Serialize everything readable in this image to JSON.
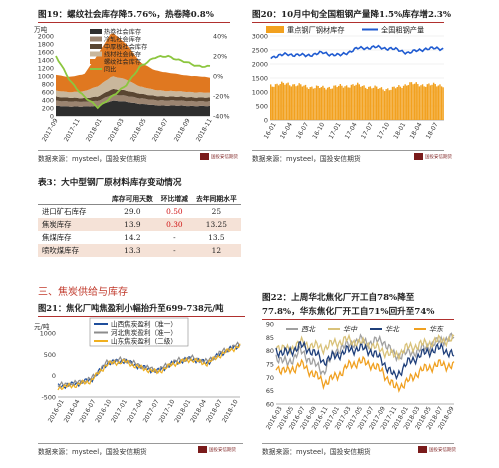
{
  "fig19": {
    "title": "图19：螺纹社会库存降5.76%，热卷降0.8%",
    "y_unit": "万吨",
    "source": "数据来源：mysteel，国投安信期货",
    "chart_data": {
      "type": "area",
      "title": "图19：螺纹社会库存降5.76%，热卷降0.8%",
      "ylabel": "万吨",
      "ylim": [
        0,
        2000
      ],
      "y2lim": [
        -40,
        40
      ],
      "y_ticks": [
        "2000",
        "1800",
        "1600",
        "1400",
        "1200",
        "1000",
        "800",
        "600",
        "400",
        "200",
        "0"
      ],
      "y2_ticks": [
        "40%",
        "20%",
        "0%",
        "-20%",
        "-40%"
      ],
      "x_ticks": [
        "2017-09",
        "2017-11",
        "2018-01",
        "2018-03",
        "2018-05",
        "2018-07",
        "2018-09",
        "2018-11"
      ],
      "series": [
        {
          "name": "热卷社会库存",
          "color": "#2e2e2e",
          "values": [
            250,
            240,
            230,
            250,
            380,
            360,
            300,
            270,
            260,
            255,
            250,
            245
          ]
        },
        {
          "name": "冷轧社会库存",
          "color": "#9b8470",
          "values": [
            130,
            125,
            120,
            130,
            150,
            150,
            140,
            130,
            125,
            125,
            120,
            118
          ]
        },
        {
          "name": "中厚板社会库存",
          "color": "#5a4632",
          "values": [
            100,
            95,
            90,
            110,
            140,
            130,
            115,
            105,
            100,
            100,
            95,
            95
          ]
        },
        {
          "name": "线材社会库存",
          "color": "#c9b79c",
          "values": [
            150,
            140,
            170,
            260,
            320,
            280,
            180,
            150,
            140,
            130,
            130,
            120
          ]
        },
        {
          "name": "螺纹社会库存",
          "color": "#e07820",
          "values": [
            400,
            380,
            420,
            800,
            1100,
            900,
            600,
            500,
            450,
            420,
            400,
            380
          ]
        },
        {
          "name": "同比",
          "color": "#8cc63f",
          "values": [
            20,
            -5,
            -20,
            -32,
            -20,
            -10,
            10,
            18,
            20,
            15,
            10,
            10
          ]
        }
      ]
    }
  },
  "fig20": {
    "title": "图20：10月中旬全国粗钢产量降1.5%库存增2.3%",
    "source": "数据来源：mysteel，国投安信期货",
    "chart_data": {
      "type": "bar",
      "title": "图20：10月中旬全国粗钢产量降1.5%库存增2.3%",
      "ylim": [
        0,
        3000
      ],
      "y_ticks": [
        "3000",
        "2500",
        "2000",
        "1500",
        "1000",
        "500",
        "0"
      ],
      "x_ticks": [
        "16-01",
        "16-04",
        "16-07",
        "16-10",
        "17-01",
        "17-04",
        "17-07",
        "17-10",
        "18-01",
        "18-04",
        "18-07"
      ],
      "series": [
        {
          "name": "重点钢厂钢材库存",
          "color": "#f2a11f",
          "values": [
            1250,
            1300,
            1200,
            1150,
            1200,
            1250,
            1150,
            1100,
            1300,
            1250,
            1250
          ]
        },
        {
          "name": "全国粗钢产量",
          "color": "#1f5bd1",
          "values": [
            2250,
            2350,
            2300,
            2400,
            2300,
            2550,
            2600,
            2550,
            2400,
            2550,
            2550
          ]
        }
      ]
    }
  },
  "table3": {
    "title": "表3：大中型钢厂原材料库存变动情况",
    "headers": [
      "",
      "库存可用天数",
      "环比增减",
      "去年同期水平"
    ],
    "rows": [
      {
        "label": "进口矿石库存",
        "days": "29.0",
        "change": "0.50",
        "last_year": "25"
      },
      {
        "label": "焦炭库存",
        "days": "13.9",
        "change": "0.30",
        "last_year": "13.25"
      },
      {
        "label": "焦煤库存",
        "days": "14.2",
        "change": "-",
        "last_year": "13.5"
      },
      {
        "label": "喷吹煤库存",
        "days": "13.3",
        "change": "-",
        "last_year": "12"
      }
    ]
  },
  "section3": {
    "title": "三、焦炭供给与库存"
  },
  "fig21": {
    "title": "图21：焦化厂吨焦盈利小幅抬升至699-738元/吨",
    "y_unit": "元/吨",
    "source": "数据来源：mysteel，国投安信期货",
    "chart_data": {
      "type": "line",
      "title": "图21：焦化厂吨焦盈利小幅抬升至699-738元/吨",
      "ylabel": "元/吨",
      "ylim": [
        -500,
        1000
      ],
      "y_ticks": [
        "1000",
        "500",
        "0",
        "-500"
      ],
      "x_ticks": [
        "2016-01",
        "2016-04",
        "2016-07",
        "2016-10",
        "2017-01",
        "2017-04",
        "2017-07",
        "2017-10",
        "2018-01",
        "2018-04",
        "2018-07",
        "2018-10"
      ],
      "series": [
        {
          "name": "山西焦炭盈利（准一）",
          "color": "#1f4e9c",
          "values": [
            -250,
            -200,
            -100,
            300,
            350,
            200,
            100,
            300,
            400,
            300,
            550,
            720
          ]
        },
        {
          "name": "河北焦炭盈利（准一）",
          "color": "#8c8c8c",
          "values": [
            -230,
            -180,
            -80,
            320,
            380,
            220,
            120,
            330,
            420,
            330,
            580,
            740
          ]
        },
        {
          "name": "山东焦炭盈利（二级）",
          "color": "#f0b020",
          "values": [
            -280,
            -230,
            -120,
            280,
            330,
            180,
            80,
            280,
            380,
            280,
            530,
            700
          ]
        }
      ]
    }
  },
  "fig22": {
    "title_line1": "图22：上周华北焦化厂开工自78%降至",
    "title_line2": "77.8%，华东焦化厂开工自71%回升至74%",
    "source": "数据来源：mysteel，国投安信期货",
    "chart_data": {
      "type": "line",
      "title": "图22：上周华北焦化厂开工自78%降至77.8%，华东焦化厂开工自71%回升至74%",
      "ylim": [
        60,
        90
      ],
      "y_ticks": [
        "90",
        "85",
        "80",
        "75",
        "70",
        "65",
        "60"
      ],
      "x_ticks": [
        "2016-03",
        "2016-05",
        "2016-07",
        "2016-09",
        "2016-11",
        "2017-01",
        "2017-03",
        "2017-05",
        "2017-07",
        "2017-09",
        "2017-11",
        "2018-01",
        "2018-03",
        "2018-05",
        "2018-07",
        "2018-09"
      ],
      "series": [
        {
          "name": "西北",
          "color": "#a0a0a0",
          "values": [
            78,
            75,
            80,
            76,
            72,
            80,
            82,
            84,
            83,
            84,
            78,
            79,
            80,
            82,
            84,
            85
          ]
        },
        {
          "name": "华中",
          "color": "#d9c27a",
          "values": [
            82,
            80,
            83,
            82,
            81,
            83,
            84,
            83,
            82,
            80,
            78,
            81,
            82,
            83,
            84,
            84
          ]
        },
        {
          "name": "华北",
          "color": "#1f3f7a",
          "values": [
            80,
            79,
            82,
            80,
            76,
            78,
            80,
            81,
            80,
            76,
            70,
            75,
            78,
            80,
            81,
            78
          ]
        },
        {
          "name": "华东",
          "color": "#f0a020",
          "values": [
            74,
            72,
            75,
            72,
            68,
            70,
            74,
            76,
            75,
            72,
            66,
            68,
            72,
            74,
            75,
            74
          ]
        }
      ]
    }
  },
  "logo_text": "国投安信期货"
}
